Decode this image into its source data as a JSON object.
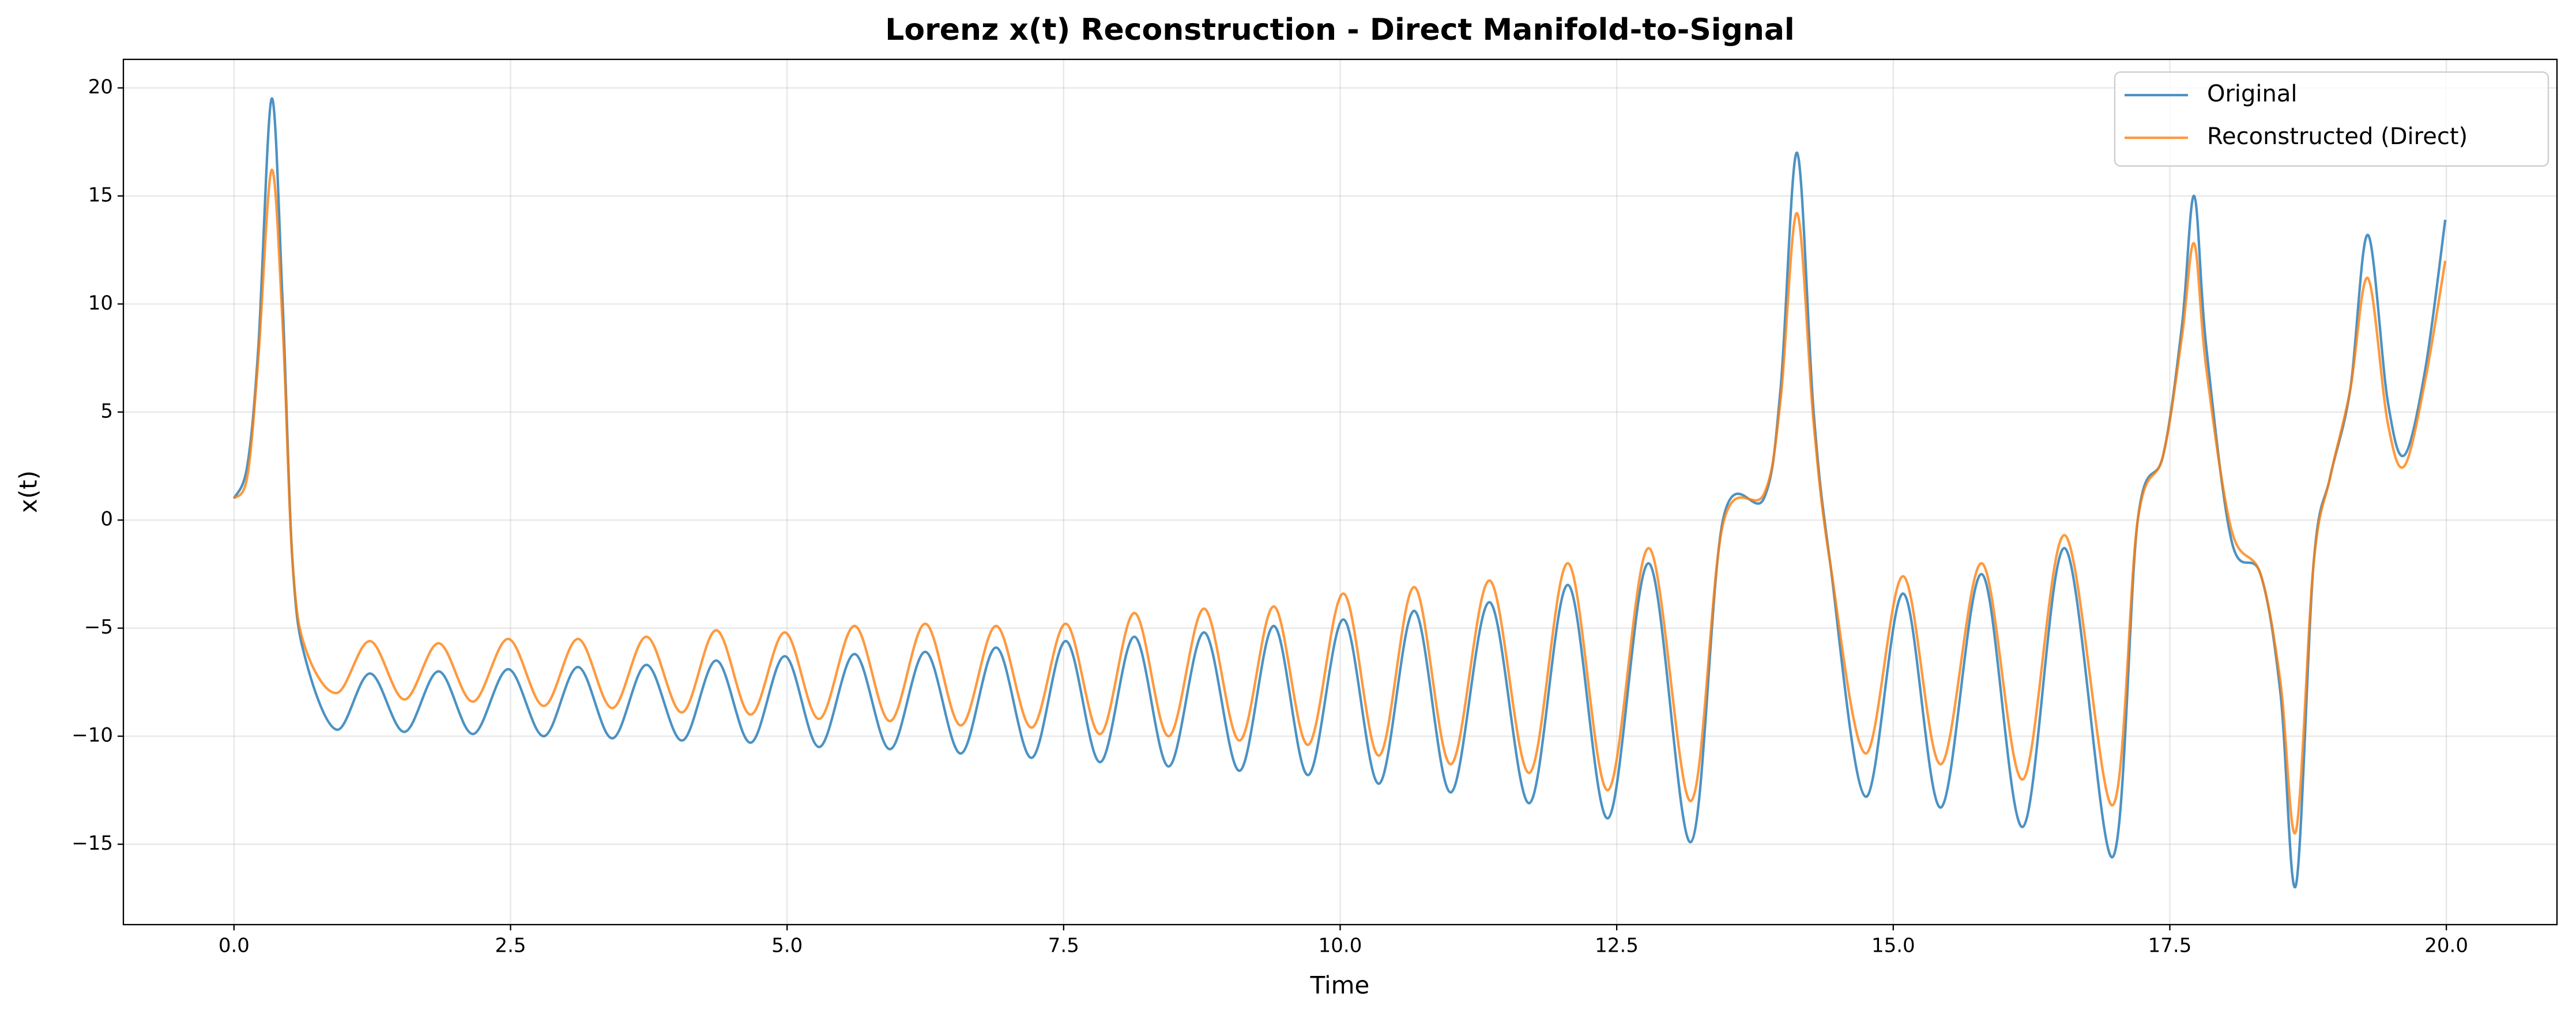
{
  "chart_data": {
    "type": "line",
    "title": "Lorenz x(t) Reconstruction - Direct Manifold-to-Signal",
    "x_label": "Time",
    "y_label": "x(t)",
    "x": [
      0,
      0.12,
      0.22,
      0.34,
      0.44,
      0.53,
      0.65,
      0.93,
      1.23,
      1.54,
      1.85,
      2.16,
      2.48,
      2.8,
      3.11,
      3.42,
      3.73,
      4.05,
      4.36,
      4.67,
      4.98,
      5.29,
      5.61,
      5.93,
      6.25,
      6.57,
      6.89,
      7.21,
      7.52,
      7.83,
      8.14,
      8.45,
      8.77,
      9.09,
      9.4,
      9.71,
      10.03,
      10.35,
      10.67,
      11.0,
      11.35,
      11.71,
      12.06,
      12.42,
      12.79,
      13.17,
      13.46,
      13.83,
      13.98,
      14.13,
      14.28,
      14.43,
      14.75,
      15.09,
      15.43,
      15.8,
      16.17,
      16.55,
      16.98,
      17.21,
      17.44,
      17.61,
      17.72,
      17.83,
      18.06,
      18.32,
      18.5,
      18.64,
      18.8,
      18.95,
      19.13,
      19.29,
      19.47,
      19.62,
      19.81,
      19.99
    ],
    "series": [
      {
        "name": "Original",
        "color": "#1f77b4",
        "values": [
          1,
          2.5,
          8,
          19.5,
          10,
          -2,
          -6.5,
          -9.7,
          -7.1,
          -9.8,
          -7.0,
          -9.9,
          -6.9,
          -10.0,
          -6.8,
          -10.1,
          -6.7,
          -10.2,
          -6.5,
          -10.3,
          -6.3,
          -10.5,
          -6.2,
          -10.6,
          -6.1,
          -10.8,
          -5.9,
          -11.0,
          -5.6,
          -11.2,
          -5.4,
          -11.4,
          -5.2,
          -11.6,
          -4.9,
          -11.8,
          -4.6,
          -12.2,
          -4.2,
          -12.6,
          -3.8,
          -13.1,
          -3.0,
          -13.8,
          -2.0,
          -14.9,
          0,
          1.0,
          6,
          17.0,
          5,
          -2.0,
          -12.8,
          -3.4,
          -13.3,
          -2.5,
          -14.2,
          -1.3,
          -15.6,
          0,
          3.0,
          9,
          15.0,
          8,
          -1.0,
          -2.5,
          -8,
          -16.9,
          -2,
          2,
          6,
          13.2,
          5.5,
          3.0,
          7,
          13.9
        ]
      },
      {
        "name": "Reconstructed (Direct)",
        "color": "#ff7f0e",
        "values": [
          1,
          2.0,
          7.5,
          16.2,
          9,
          -2,
          -6,
          -8.0,
          -5.6,
          -8.3,
          -5.7,
          -8.4,
          -5.5,
          -8.6,
          -5.5,
          -8.7,
          -5.4,
          -8.9,
          -5.1,
          -9.0,
          -5.2,
          -9.2,
          -4.9,
          -9.3,
          -4.8,
          -9.5,
          -4.9,
          -9.6,
          -4.8,
          -9.9,
          -4.3,
          -10.0,
          -4.1,
          -10.2,
          -4.0,
          -10.4,
          -3.4,
          -10.9,
          -3.1,
          -11.3,
          -2.8,
          -11.7,
          -2.0,
          -12.5,
          -1.3,
          -13.0,
          -0.2,
          1.2,
          5.5,
          14.2,
          4.5,
          -2.0,
          -10.8,
          -2.6,
          -11.3,
          -2.0,
          -12.0,
          -0.7,
          -13.2,
          0,
          3.0,
          8.5,
          12.8,
          7,
          -0.5,
          -2.5,
          -7.5,
          -14.4,
          -2,
          2,
          6,
          11.2,
          4.5,
          2.5,
          6.5,
          12.0
        ]
      }
    ],
    "xlim": [
      -1,
      21
    ],
    "ylim": [
      -18.72,
      21.32
    ],
    "xticks": [
      {
        "value": 0,
        "label": "0.0"
      },
      2.5,
      {
        "value": 5,
        "label": "5.0"
      },
      7.5,
      {
        "value": 10,
        "label": "10.0"
      },
      12.5,
      {
        "value": 15,
        "label": "15.0"
      },
      17.5,
      {
        "value": 20,
        "label": "20.0"
      }
    ],
    "yticks": [
      {
        "value": -15,
        "label": "−15"
      },
      {
        "value": -10,
        "label": "−10"
      },
      {
        "value": -5,
        "label": "−5"
      },
      0,
      5,
      10,
      15,
      20
    ],
    "grid": true,
    "legend": "upper right"
  }
}
